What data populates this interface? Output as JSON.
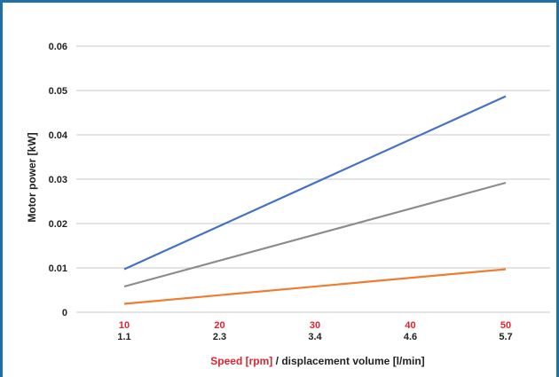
{
  "chart_data": {
    "type": "line",
    "ylabel": "Motor power [kW]",
    "xlabel_parts": [
      "Speed [rpm]",
      " / displacement volume [l/min]"
    ],
    "x": [
      10,
      50
    ],
    "x_ticks_speed": [
      "10",
      "20",
      "30",
      "40",
      "50"
    ],
    "x_ticks_volume": [
      "1.1",
      "2.3",
      "3.4",
      "4.6",
      "5.7"
    ],
    "y_ticks": [
      "0",
      "0.01",
      "0.02",
      "0.03",
      "0.04",
      "0.05",
      "0.06"
    ],
    "ylim": [
      0,
      0.06
    ],
    "xlim": [
      10,
      50
    ],
    "grid": true,
    "series": [
      {
        "values": [
          0.0097,
          0.0487
        ],
        "color": "#4472c4"
      },
      {
        "values": [
          0.0058,
          0.0292
        ],
        "color": "#8c8c8c"
      },
      {
        "values": [
          0.0019,
          0.0097
        ],
        "color": "#ed7d31"
      }
    ],
    "colors": {
      "speed_label": "#e0242f",
      "grid": "#c8c8c8",
      "frame": "#1f6fa8"
    }
  }
}
